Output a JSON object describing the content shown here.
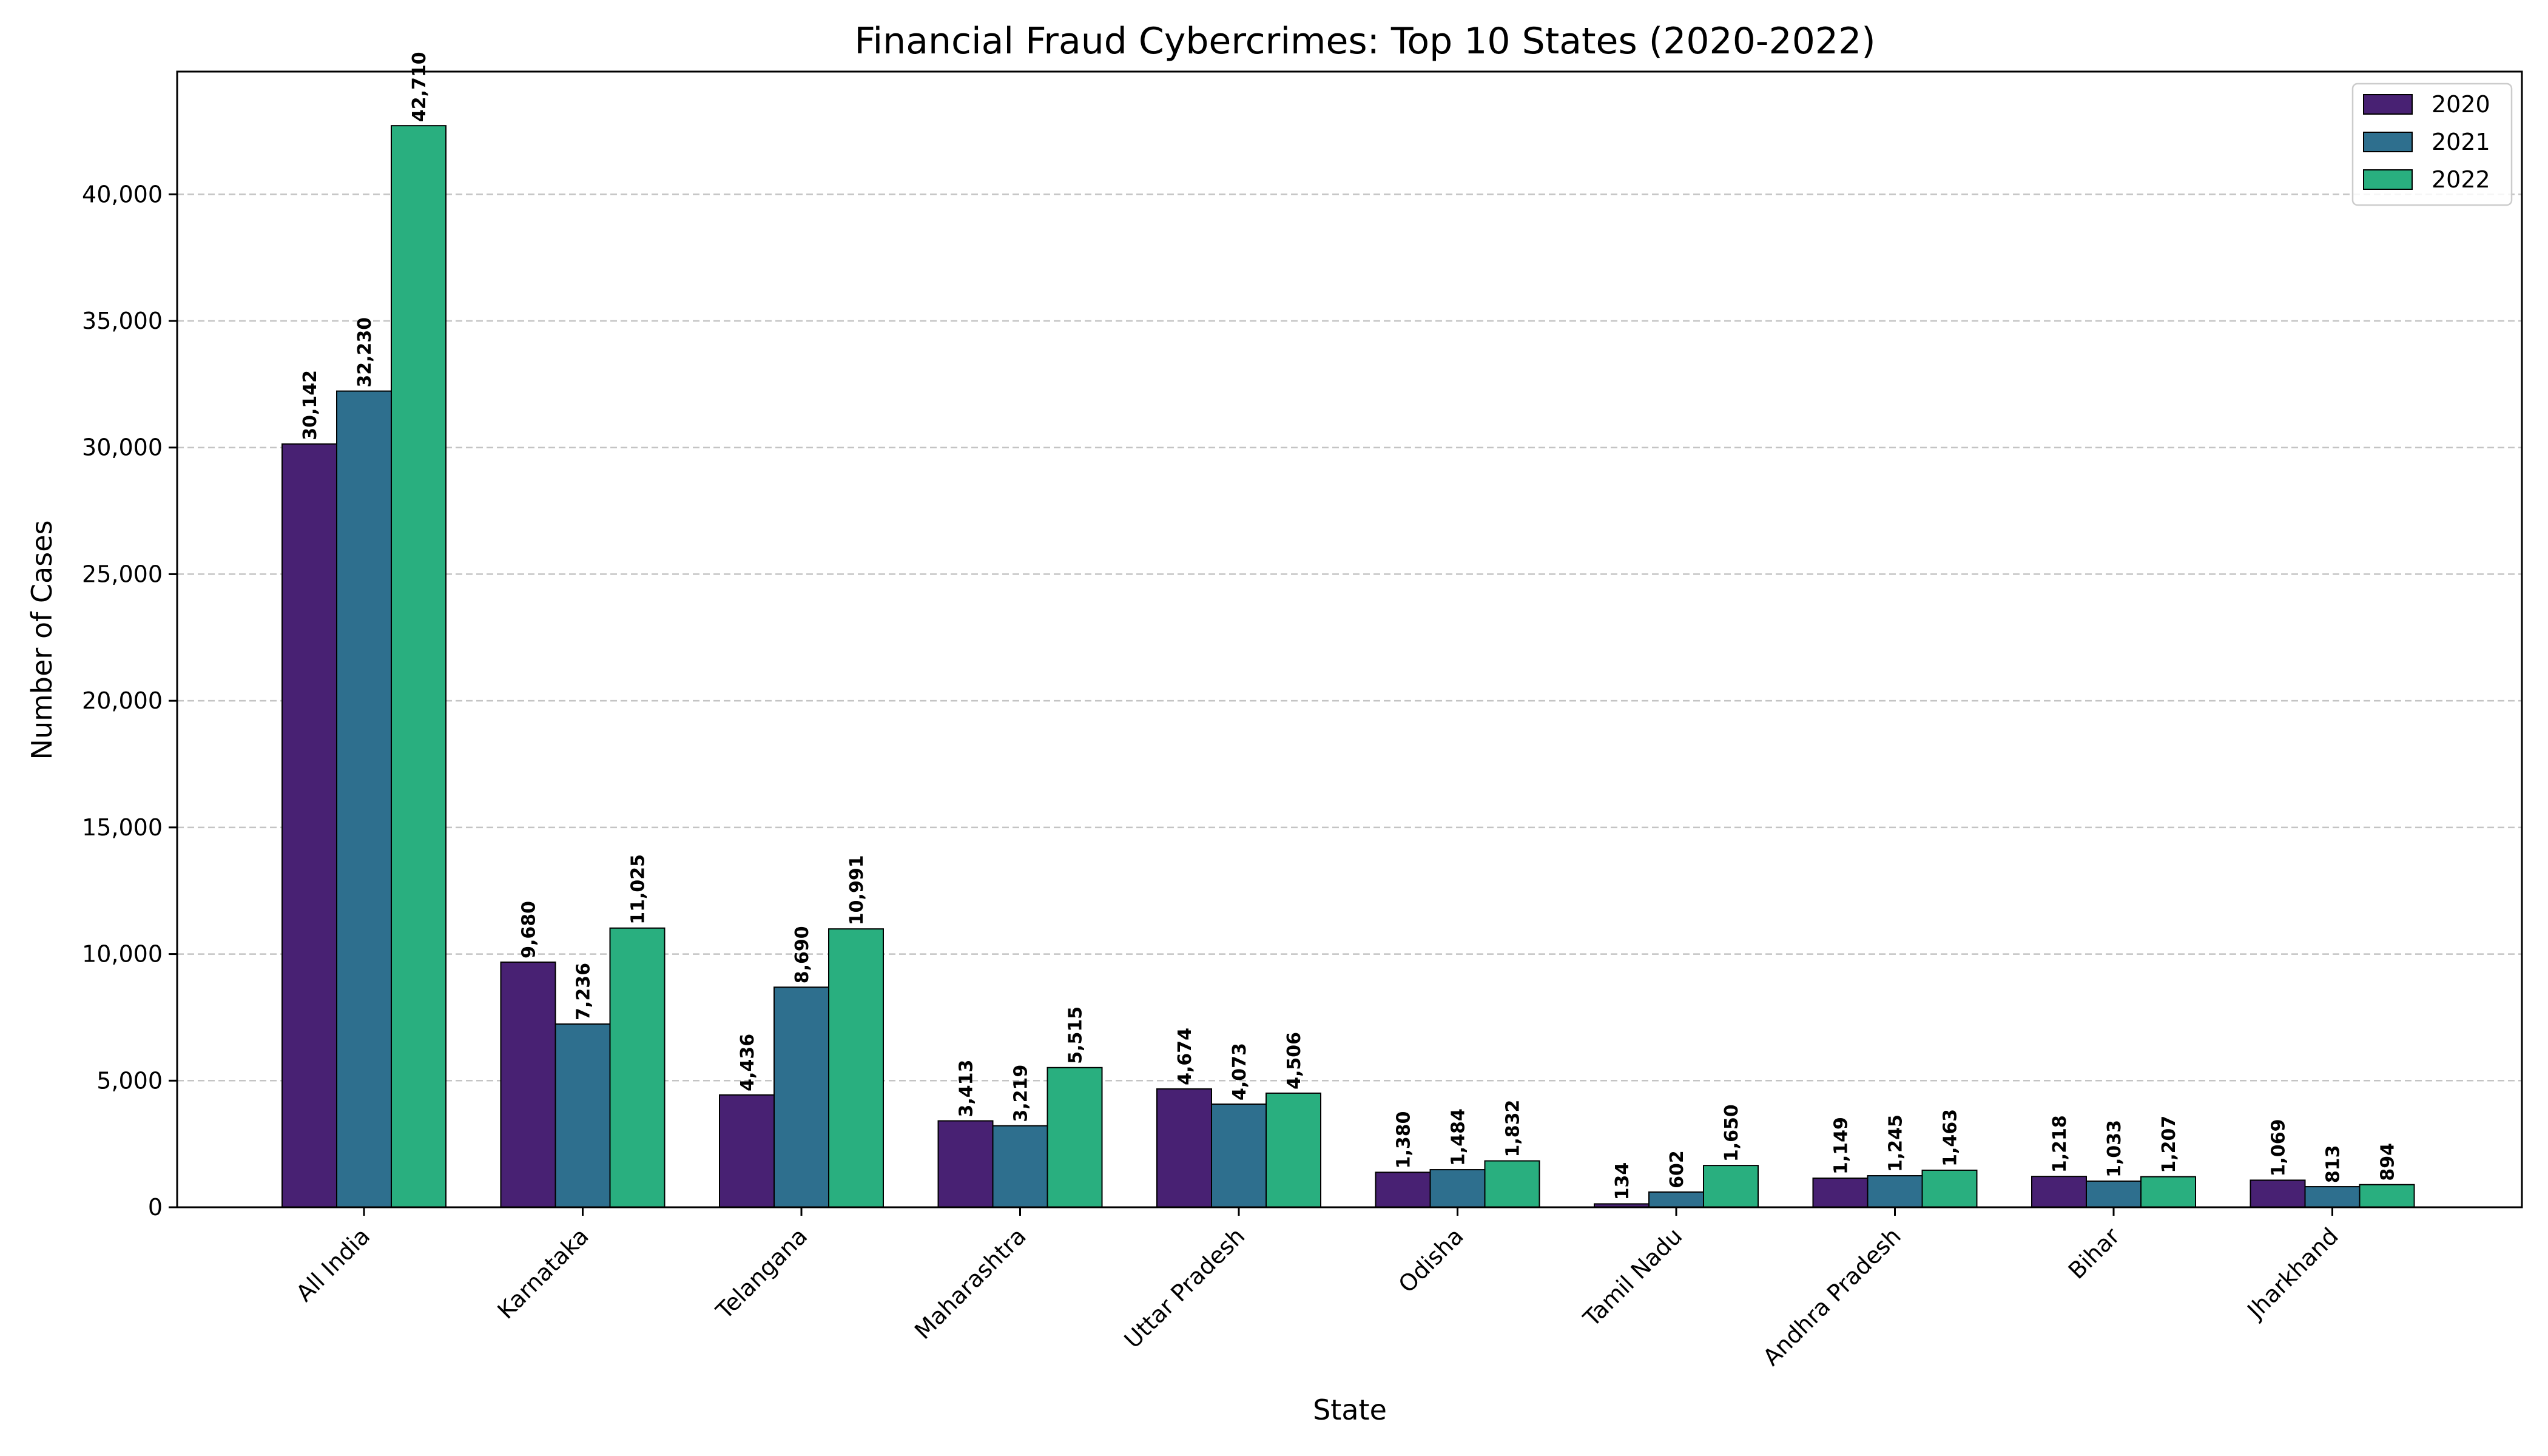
{
  "chart_data": {
    "type": "bar",
    "title": "Financial Fraud Cybercrimes: Top 10 States (2020-2022)",
    "xlabel": "State",
    "ylabel": "Number of Cases",
    "categories": [
      "All India",
      "Karnataka",
      "Telangana",
      "Maharashtra",
      "Uttar Pradesh",
      "Odisha",
      "Tamil Nadu",
      "Andhra Pradesh",
      "Bihar",
      "Jharkhand"
    ],
    "series": [
      {
        "name": "2020",
        "color": "#482173",
        "values": [
          30142,
          9680,
          4436,
          3413,
          4674,
          1380,
          134,
          1149,
          1218,
          1069
        ]
      },
      {
        "name": "2021",
        "color": "#2e6f8e",
        "values": [
          32230,
          7236,
          8690,
          3219,
          4073,
          1484,
          602,
          1245,
          1033,
          813
        ]
      },
      {
        "name": "2022",
        "color": "#29af7f",
        "values": [
          42710,
          11025,
          10991,
          5515,
          4506,
          1832,
          1650,
          1463,
          1207,
          894
        ]
      }
    ],
    "yticks": [
      0,
      5000,
      10000,
      15000,
      20000,
      25000,
      30000,
      35000,
      40000
    ],
    "ylim": [
      0,
      44846
    ],
    "grid": "y-dashed",
    "legend": "top-right"
  }
}
